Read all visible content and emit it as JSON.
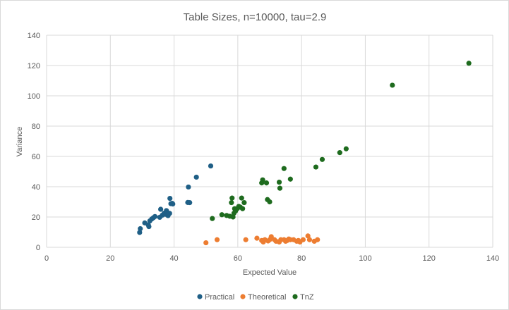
{
  "chart_data": {
    "type": "scatter",
    "title": "Table Sizes, n=10000, tau=2.9",
    "xlabel": "Expected Value",
    "ylabel": "Variance",
    "xlim": [
      0,
      140
    ],
    "ylim": [
      0,
      140
    ],
    "xticks": [
      0,
      20,
      40,
      60,
      80,
      100,
      120,
      140
    ],
    "yticks": [
      0,
      20,
      40,
      60,
      80,
      100,
      120,
      140
    ],
    "grid": true,
    "legend_position": "bottom",
    "series": [
      {
        "name": "Practical",
        "color": "#1f5f86",
        "points": [
          [
            29.2,
            9.8
          ],
          [
            29.4,
            12.3
          ],
          [
            30.8,
            16.1
          ],
          [
            31.9,
            14.8
          ],
          [
            32.1,
            13.7
          ],
          [
            32.4,
            17.4
          ],
          [
            33.0,
            18.7
          ],
          [
            33.5,
            19.5
          ],
          [
            34.0,
            20.3
          ],
          [
            35.5,
            19.8
          ],
          [
            35.8,
            25.1
          ],
          [
            36.3,
            21.2
          ],
          [
            36.9,
            22.5
          ],
          [
            37.3,
            21.8
          ],
          [
            37.6,
            24.2
          ],
          [
            37.9,
            23.0
          ],
          [
            38.1,
            20.9
          ],
          [
            38.3,
            22.0
          ],
          [
            38.6,
            22.4
          ],
          [
            38.7,
            32.3
          ],
          [
            39.0,
            28.8
          ],
          [
            39.4,
            29.0
          ],
          [
            39.6,
            28.6
          ],
          [
            44.3,
            29.6
          ],
          [
            44.5,
            39.8
          ],
          [
            44.9,
            29.5
          ],
          [
            47.0,
            46.3
          ],
          [
            51.5,
            53.7
          ]
        ]
      },
      {
        "name": "Theoretical",
        "color": "#ed7d31",
        "points": [
          [
            50.0,
            3.0
          ],
          [
            53.5,
            5.0
          ],
          [
            62.5,
            5.0
          ],
          [
            66.0,
            6.0
          ],
          [
            67.5,
            4.5
          ],
          [
            68.0,
            3.5
          ],
          [
            68.5,
            5.0
          ],
          [
            69.5,
            4.2
          ],
          [
            70.0,
            5.0
          ],
          [
            70.5,
            7.0
          ],
          [
            71.5,
            5.0
          ],
          [
            72.0,
            4.0
          ],
          [
            73.0,
            3.5
          ],
          [
            73.5,
            5.0
          ],
          [
            74.5,
            5.0
          ],
          [
            75.0,
            4.0
          ],
          [
            75.5,
            4.5
          ],
          [
            76.0,
            5.5
          ],
          [
            76.5,
            5.0
          ],
          [
            77.5,
            5.0
          ],
          [
            78.5,
            4.0
          ],
          [
            79.0,
            4.5
          ],
          [
            79.5,
            3.5
          ],
          [
            80.5,
            5.0
          ],
          [
            82.0,
            7.5
          ],
          [
            82.5,
            5.0
          ],
          [
            84.0,
            4.0
          ],
          [
            85.0,
            5.0
          ]
        ]
      },
      {
        "name": "TnZ",
        "color": "#1e6b1e",
        "points": [
          [
            52.0,
            19.0
          ],
          [
            55.0,
            21.5
          ],
          [
            56.5,
            21.0
          ],
          [
            57.5,
            20.5
          ],
          [
            58.0,
            29.5
          ],
          [
            58.2,
            32.5
          ],
          [
            58.5,
            20.0
          ],
          [
            58.8,
            22.5
          ],
          [
            59.0,
            25.5
          ],
          [
            59.3,
            24.0
          ],
          [
            59.8,
            25.5
          ],
          [
            60.3,
            27.0
          ],
          [
            60.8,
            26.5
          ],
          [
            61.2,
            32.5
          ],
          [
            61.5,
            25.5
          ],
          [
            62.0,
            29.5
          ],
          [
            67.5,
            42.5
          ],
          [
            67.8,
            44.5
          ],
          [
            69.0,
            42.5
          ],
          [
            69.3,
            31.5
          ],
          [
            70.0,
            30.0
          ],
          [
            73.0,
            43.0
          ],
          [
            73.2,
            39.0
          ],
          [
            74.5,
            52.0
          ],
          [
            76.5,
            45.0
          ],
          [
            84.5,
            53.0
          ],
          [
            86.5,
            58.0
          ],
          [
            92.0,
            62.5
          ],
          [
            94.0,
            65.0
          ],
          [
            108.5,
            107.0
          ],
          [
            132.5,
            121.5
          ]
        ]
      }
    ]
  }
}
